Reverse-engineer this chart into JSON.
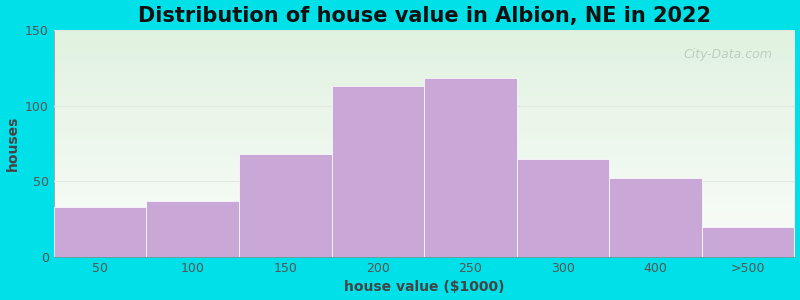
{
  "title": "Distribution of house value in Albion, NE in 2022",
  "xlabel": "house value ($1000)",
  "ylabel": "houses",
  "bar_labels": [
    "50",
    "100",
    "150",
    "200",
    "250",
    "300",
    "400",
    ">500"
  ],
  "bar_values": [
    33,
    37,
    68,
    113,
    118,
    65,
    52,
    20
  ],
  "bar_color": "#c9a8d8",
  "bar_edgecolor": "#ffffff",
  "ylim": [
    0,
    150
  ],
  "yticks": [
    0,
    50,
    100,
    150
  ],
  "background_outer": "#00e0e8",
  "background_inner": "#e8f5e2",
  "title_fontsize": 15,
  "axis_label_fontsize": 10,
  "watermark_text": "City-Data.com",
  "watermark_color": "#b8c8b8",
  "grid_color": "#e0e8e0",
  "spine_color": "#888888",
  "tick_color": "#555555"
}
